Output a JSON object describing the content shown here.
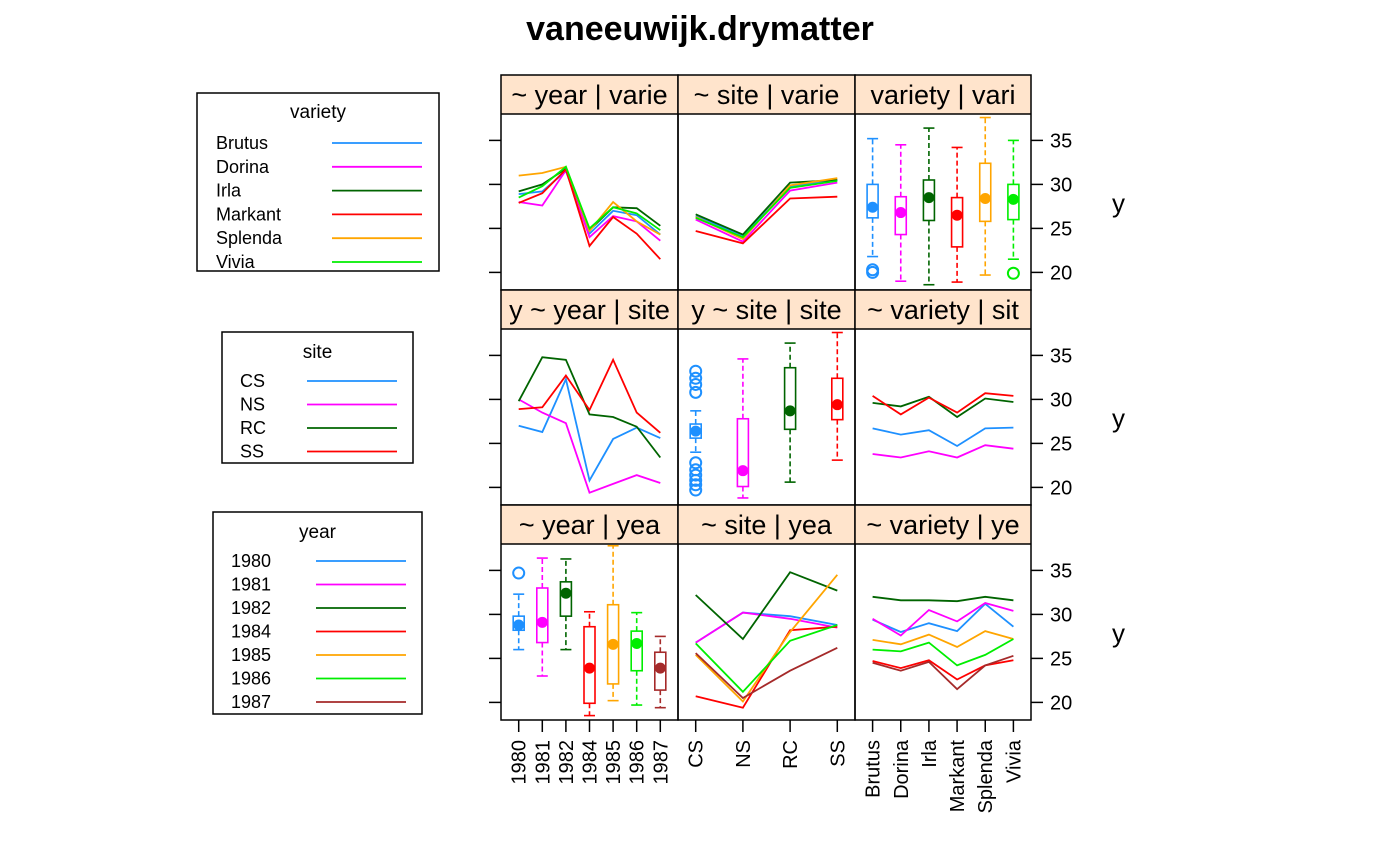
{
  "chart_data": {
    "type": "trellis-matrix",
    "title": "vaneeuwijk.drymatter",
    "colors": {
      "variety": {
        "Brutus": "#1e90ff",
        "Dorina": "#ff00ff",
        "Irla": "#006400",
        "Markant": "#ff0000",
        "Splenda": "#ffa500",
        "Vivia": "#00ee00"
      },
      "site": {
        "CS": "#1e90ff",
        "NS": "#ff00ff",
        "RC": "#006400",
        "SS": "#ff0000"
      },
      "year": {
        "1980": "#1e90ff",
        "1981": "#ff00ff",
        "1982": "#006400",
        "1984": "#ff0000",
        "1985": "#ffa500",
        "1986": "#00ee00",
        "1987": "#a52a2a"
      },
      "strip": "#ffe4cc"
    },
    "ylim": [
      18,
      38
    ],
    "yticks": [
      20,
      25,
      30,
      35
    ],
    "ylabel": "y",
    "grid": false,
    "x_groups": {
      "year": [
        "1980",
        "1981",
        "1982",
        "1984",
        "1985",
        "1986",
        "1987"
      ],
      "site": [
        "CS",
        "NS",
        "RC",
        "SS"
      ],
      "variety": [
        "Brutus",
        "Dorina",
        "Irla",
        "Markant",
        "Splenda",
        "Vivia"
      ]
    },
    "strips": [
      [
        "~ year | varie",
        "~ site | varie",
        "variety | vari"
      ],
      [
        "y ~ year | site",
        "y ~ site | site",
        "~ variety | sit"
      ],
      [
        "~ year | yea",
        "~ site | yea",
        "~ variety | ye"
      ]
    ],
    "legends": [
      {
        "title": "variety",
        "entries": [
          "Brutus",
          "Dorina",
          "Irla",
          "Markant",
          "Splenda",
          "Vivia"
        ]
      },
      {
        "title": "site",
        "entries": [
          "CS",
          "NS",
          "RC",
          "SS"
        ]
      },
      {
        "title": "year",
        "entries": [
          "1980",
          "1981",
          "1982",
          "1984",
          "1985",
          "1986",
          "1987"
        ]
      }
    ],
    "panels": {
      "variety_by_year": {
        "type": "line",
        "x": "year",
        "series": [
          {
            "name": "Brutus",
            "values": [
              28.9,
              29.2,
              31.5,
              24.4,
              27.0,
              26.5,
              24.3
            ]
          },
          {
            "name": "Dorina",
            "values": [
              28.0,
              27.6,
              31.6,
              24.0,
              26.4,
              25.8,
              23.6
            ]
          },
          {
            "name": "Irla",
            "values": [
              29.2,
              30.0,
              31.8,
              24.8,
              27.4,
              27.3,
              25.3
            ]
          },
          {
            "name": "Markant",
            "values": [
              27.9,
              29.0,
              31.7,
              23.0,
              26.3,
              24.4,
              21.5
            ]
          },
          {
            "name": "Splenda",
            "values": [
              31.0,
              31.3,
              32.0,
              24.7,
              28.0,
              25.8,
              24.3
            ]
          },
          {
            "name": "Vivia",
            "values": [
              28.5,
              29.8,
              32.0,
              25.0,
              27.4,
              26.7,
              24.8
            ]
          }
        ]
      },
      "variety_by_site": {
        "type": "line",
        "x": "site",
        "series": [
          {
            "name": "Brutus",
            "values": [
              26.4,
              24.2,
              29.8,
              30.5
            ]
          },
          {
            "name": "Dorina",
            "values": [
              26.0,
              23.5,
              29.3,
              30.2
            ]
          },
          {
            "name": "Irla",
            "values": [
              26.6,
              24.3,
              30.2,
              30.5
            ]
          },
          {
            "name": "Markant",
            "values": [
              24.7,
              23.3,
              28.4,
              28.6
            ]
          },
          {
            "name": "Splenda",
            "values": [
              26.3,
              23.8,
              29.9,
              30.7
            ]
          },
          {
            "name": "Vivia",
            "values": [
              26.2,
              24.0,
              29.6,
              30.4
            ]
          }
        ]
      },
      "variety_box": {
        "type": "box",
        "x": "variety",
        "boxes": [
          {
            "name": "Brutus",
            "lower": 21.8,
            "q1": 26.2,
            "median": 27.4,
            "q3": 30.0,
            "upper": 35.2,
            "outliers": [
              20.0,
              20.3
            ]
          },
          {
            "name": "Dorina",
            "lower": 19.0,
            "q1": 24.3,
            "median": 26.8,
            "q3": 28.6,
            "upper": 34.5,
            "outliers": []
          },
          {
            "name": "Irla",
            "lower": 18.6,
            "q1": 25.9,
            "median": 28.5,
            "q3": 30.5,
            "upper": 36.4,
            "outliers": []
          },
          {
            "name": "Markant",
            "lower": 18.9,
            "q1": 22.9,
            "median": 26.5,
            "q3": 28.5,
            "upper": 34.2,
            "outliers": []
          },
          {
            "name": "Splenda",
            "lower": 19.7,
            "q1": 25.8,
            "median": 28.4,
            "q3": 32.4,
            "upper": 37.6,
            "outliers": []
          },
          {
            "name": "Vivia",
            "lower": 21.5,
            "q1": 26.0,
            "median": 28.3,
            "q3": 30.0,
            "upper": 35.0,
            "outliers": [
              19.9
            ]
          }
        ]
      },
      "site_by_year": {
        "type": "line",
        "x": "year",
        "series": [
          {
            "name": "CS",
            "values": [
              27.0,
              26.3,
              32.3,
              20.8,
              25.5,
              26.8,
              25.6
            ]
          },
          {
            "name": "NS",
            "values": [
              30.0,
              28.5,
              27.3,
              19.4,
              20.4,
              21.4,
              20.5
            ]
          },
          {
            "name": "RC",
            "values": [
              29.8,
              34.8,
              34.5,
              28.3,
              28.0,
              26.9,
              23.4
            ]
          },
          {
            "name": "SS",
            "values": [
              28.9,
              29.1,
              32.7,
              28.8,
              34.5,
              28.5,
              26.2
            ]
          }
        ]
      },
      "site_box": {
        "type": "box",
        "x": "site",
        "boxes": [
          {
            "name": "CS",
            "lower": 24.0,
            "q1": 25.6,
            "median": 26.4,
            "q3": 27.2,
            "upper": 28.7,
            "outliers": [
              19.7,
              20.3,
              20.8,
              21.4,
              22.0,
              22.8,
              30.8,
              31.7,
              32.4,
              33.2
            ]
          },
          {
            "name": "NS",
            "lower": 18.8,
            "q1": 20.1,
            "median": 21.9,
            "q3": 27.8,
            "upper": 34.6,
            "outliers": []
          },
          {
            "name": "RC",
            "lower": 20.6,
            "q1": 26.6,
            "median": 28.7,
            "q3": 33.6,
            "upper": 36.4,
            "outliers": []
          },
          {
            "name": "SS",
            "lower": 23.1,
            "q1": 27.7,
            "median": 29.4,
            "q3": 32.4,
            "upper": 37.6,
            "outliers": []
          }
        ]
      },
      "site_by_variety": {
        "type": "line",
        "x": "variety",
        "series": [
          {
            "name": "CS",
            "values": [
              26.7,
              26.0,
              26.5,
              24.7,
              26.7,
              26.8
            ]
          },
          {
            "name": "NS",
            "values": [
              23.8,
              23.4,
              24.1,
              23.4,
              24.8,
              24.4
            ]
          },
          {
            "name": "RC",
            "values": [
              29.6,
              29.2,
              30.3,
              28.0,
              30.1,
              29.7
            ]
          },
          {
            "name": "SS",
            "values": [
              30.4,
              28.3,
              30.2,
              28.5,
              30.7,
              30.4
            ]
          }
        ]
      },
      "year_box": {
        "type": "box",
        "x": "year",
        "boxes": [
          {
            "name": "1980",
            "lower": 26.0,
            "q1": 28.2,
            "median": 28.8,
            "q3": 29.8,
            "upper": 32.3,
            "outliers": [
              34.7
            ]
          },
          {
            "name": "1981",
            "lower": 23.0,
            "q1": 26.8,
            "median": 29.1,
            "q3": 33.0,
            "upper": 36.4,
            "outliers": []
          },
          {
            "name": "1982",
            "lower": 26.0,
            "q1": 29.8,
            "median": 32.4,
            "q3": 33.7,
            "upper": 36.3,
            "outliers": []
          },
          {
            "name": "1984",
            "lower": 18.5,
            "q1": 19.9,
            "median": 23.9,
            "q3": 28.6,
            "upper": 30.3,
            "outliers": []
          },
          {
            "name": "1985",
            "lower": 20.2,
            "q1": 22.1,
            "median": 26.6,
            "q3": 31.1,
            "upper": 37.8,
            "outliers": []
          },
          {
            "name": "1986",
            "lower": 19.7,
            "q1": 23.6,
            "median": 26.7,
            "q3": 28.1,
            "upper": 30.2,
            "outliers": []
          },
          {
            "name": "1987",
            "lower": 19.4,
            "q1": 21.4,
            "median": 23.9,
            "q3": 25.7,
            "upper": 27.5,
            "outliers": []
          }
        ]
      },
      "year_by_site": {
        "type": "line",
        "x": "site",
        "series": [
          {
            "name": "1980",
            "values": [
              26.8,
              30.2,
              29.8,
              28.8
            ]
          },
          {
            "name": "1981",
            "values": [
              26.8,
              30.2,
              29.5,
              28.5
            ]
          },
          {
            "name": "1982",
            "values": [
              32.2,
              27.2,
              34.8,
              32.7
            ]
          },
          {
            "name": "1984",
            "values": [
              20.7,
              19.4,
              28.2,
              28.6
            ]
          },
          {
            "name": "1985",
            "values": [
              25.4,
              20.1,
              28.0,
              34.5
            ]
          },
          {
            "name": "1986",
            "values": [
              26.7,
              21.2,
              27.0,
              28.8
            ]
          },
          {
            "name": "1987",
            "values": [
              25.6,
              20.5,
              23.6,
              26.2
            ]
          }
        ]
      },
      "year_by_variety": {
        "type": "line",
        "x": "variety",
        "series": [
          {
            "name": "1980",
            "values": [
              29.4,
              28.0,
              29.0,
              28.1,
              31.2,
              28.6
            ]
          },
          {
            "name": "1981",
            "values": [
              29.5,
              27.6,
              30.5,
              29.2,
              31.3,
              30.4
            ]
          },
          {
            "name": "1982",
            "values": [
              32.0,
              31.6,
              31.6,
              31.5,
              32.0,
              31.6
            ]
          },
          {
            "name": "1984",
            "values": [
              24.7,
              23.9,
              24.8,
              22.6,
              24.2,
              24.8
            ]
          },
          {
            "name": "1985",
            "values": [
              27.1,
              26.6,
              27.7,
              26.3,
              28.1,
              27.2
            ]
          },
          {
            "name": "1986",
            "values": [
              26.0,
              25.8,
              26.8,
              24.2,
              25.4,
              27.2
            ]
          },
          {
            "name": "1987",
            "values": [
              24.5,
              23.6,
              24.6,
              21.5,
              24.2,
              25.3
            ]
          }
        ]
      }
    }
  }
}
